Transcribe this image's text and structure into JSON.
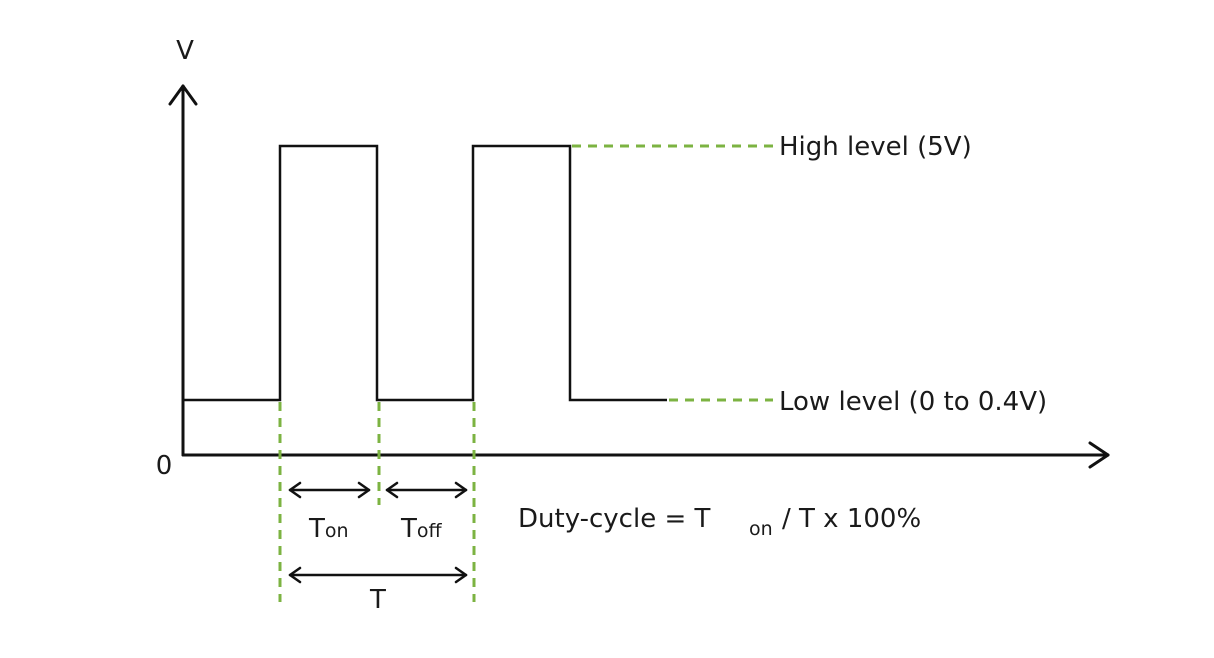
{
  "axes": {
    "y_label": "V",
    "origin_label": "0"
  },
  "levels": {
    "high": "High level (5V)",
    "low": "Low level (0 to 0.4V)"
  },
  "timing": {
    "t_on_main": "T",
    "t_on_sub": "on",
    "t_off_main": "T",
    "t_off_sub": "off",
    "period": "T"
  },
  "formula": {
    "prefix": "Duty-cycle = T",
    "subscript": "on",
    "suffix": "/ T x 100%"
  },
  "colors": {
    "guide": "#7cb342",
    "line": "#111111"
  }
}
